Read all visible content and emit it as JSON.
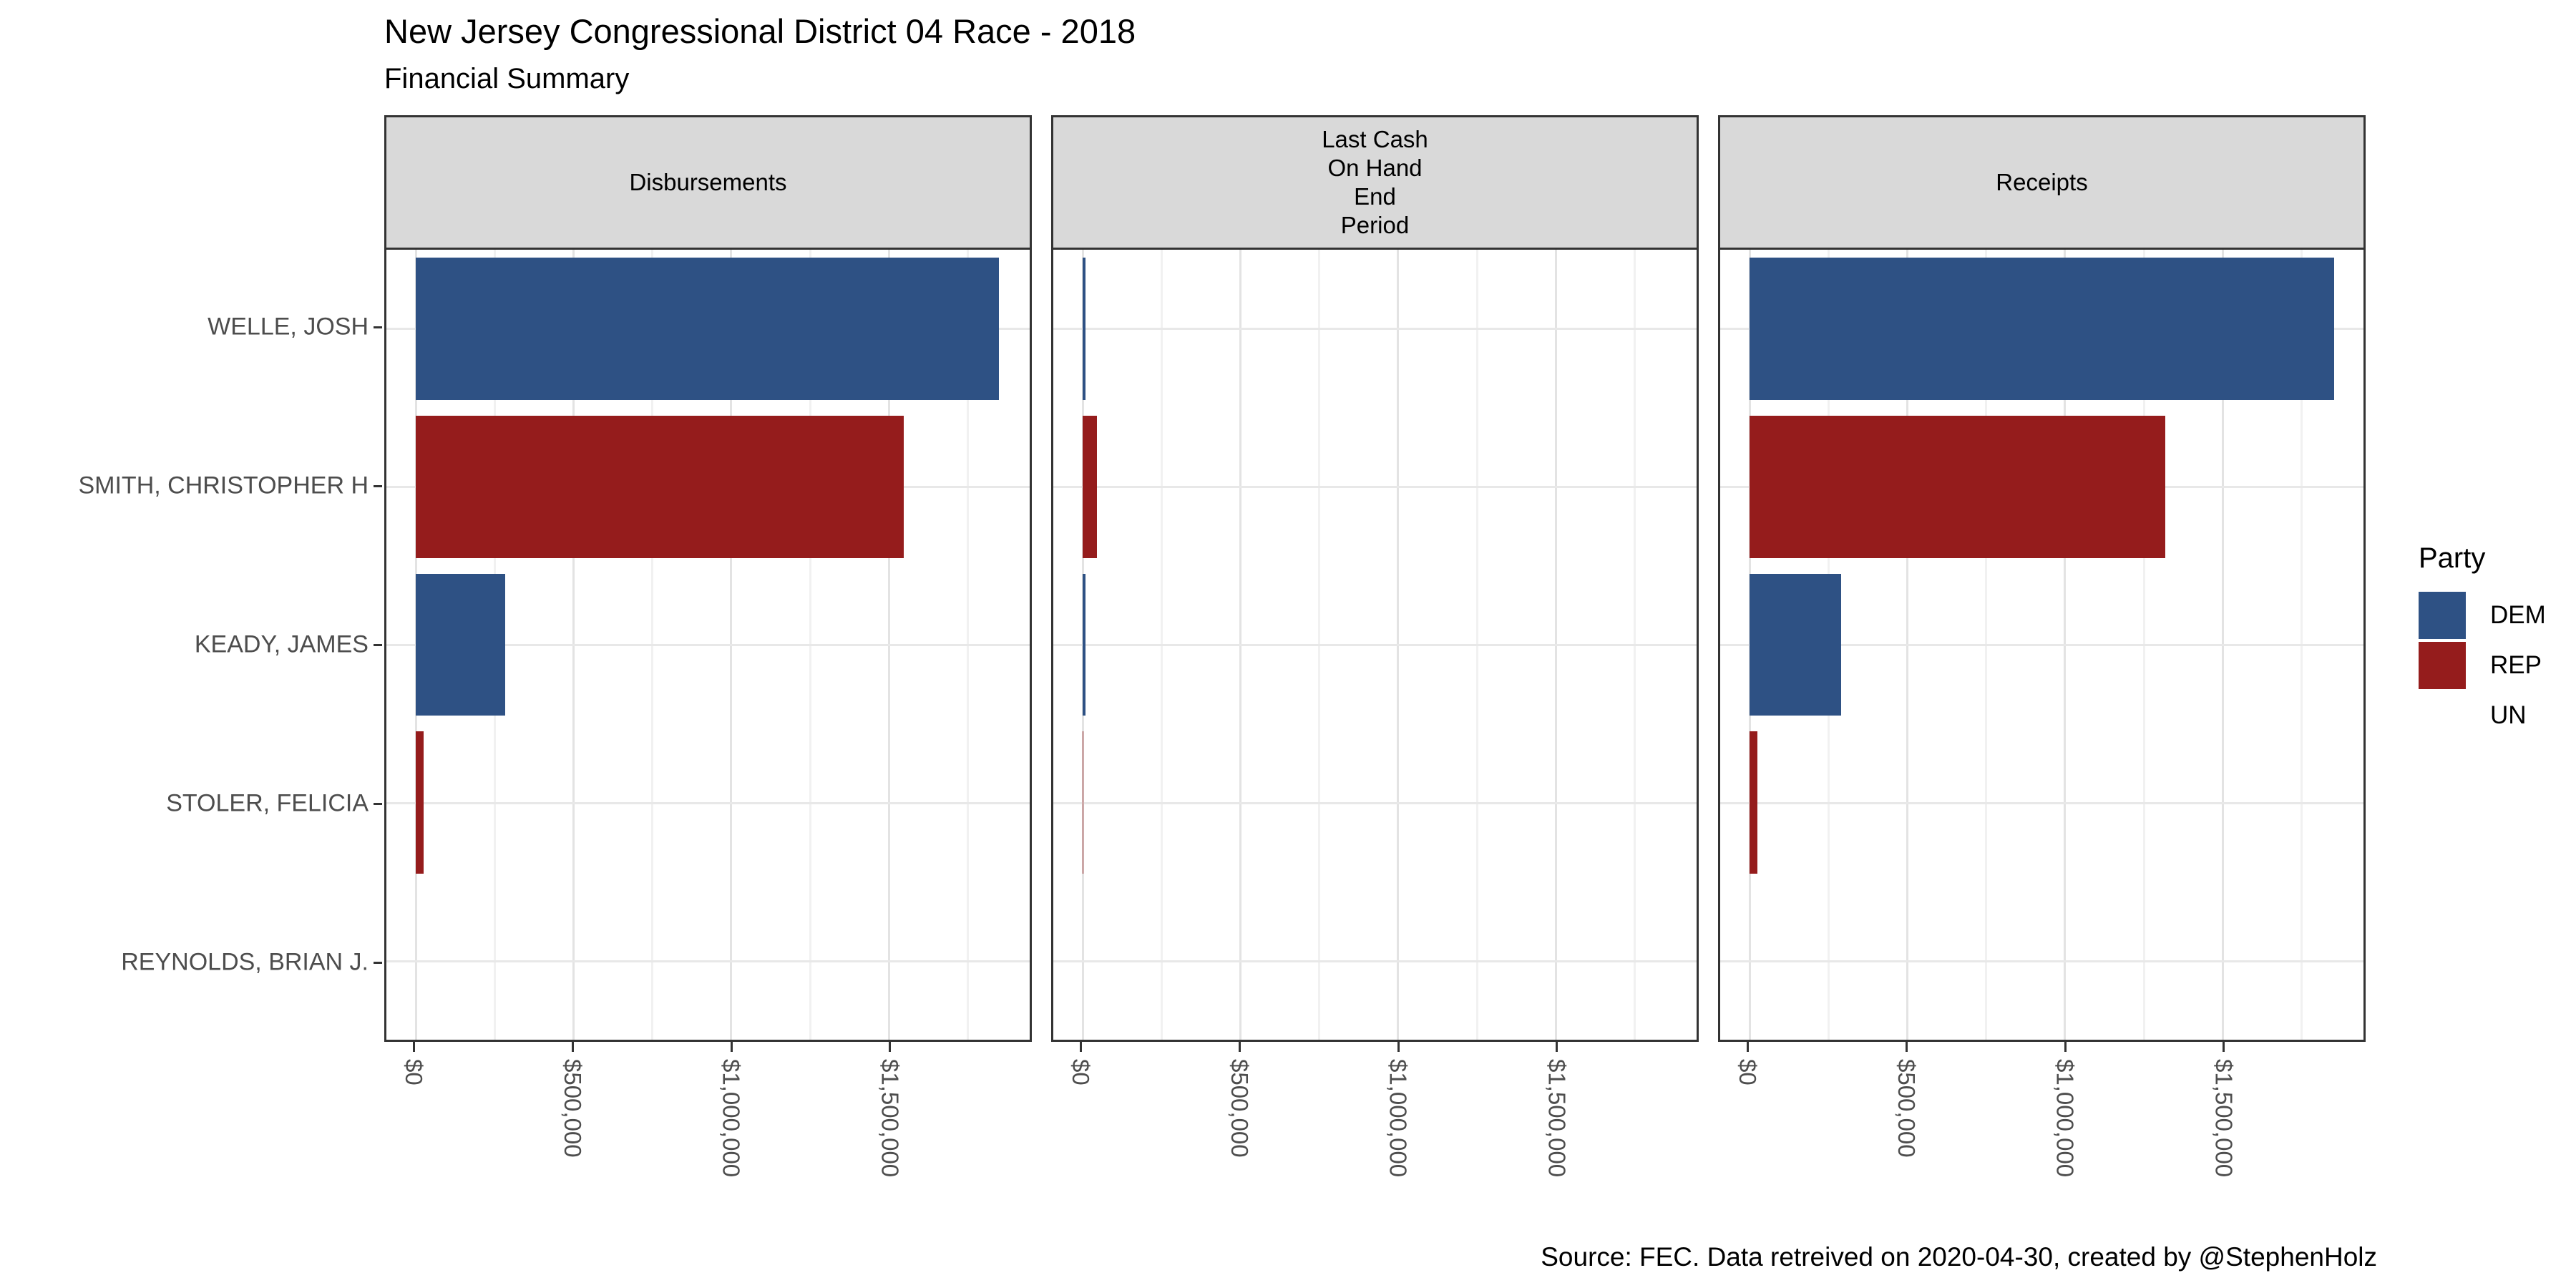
{
  "header": {
    "title": "New Jersey Congressional District 04 Race - 2018",
    "subtitle": "Financial Summary"
  },
  "caption": "Source: FEC. Data retreived on 2020-04-30, created by @StephenHolz",
  "legend": {
    "title": "Party",
    "entries": [
      {
        "label": "DEM",
        "color": "#2e5184"
      },
      {
        "label": "REP",
        "color": "#951c1c"
      },
      {
        "label": "UN",
        "color": "#ffffff"
      }
    ]
  },
  "chart_data": {
    "type": "bar",
    "orientation": "horizontal",
    "title": "New Jersey Congressional District 04 Race - 2018",
    "subtitle": "Financial Summary",
    "categories": [
      "WELLE, JOSH",
      "SMITH, CHRISTOPHER H",
      "KEADY, JAMES",
      "STOLER, FELICIA",
      "REYNOLDS, BRIAN J."
    ],
    "category_parties": [
      "DEM",
      "REP",
      "DEM",
      "REP",
      "UN"
    ],
    "party_colors": {
      "DEM": "#2e5184",
      "REP": "#951c1c",
      "UN": "#ffffff"
    },
    "facets": [
      {
        "label": "Disbursements",
        "values": [
          1850000,
          1548000,
          283000,
          25000,
          0
        ]
      },
      {
        "label": "Last Cash\nOn Hand\nEnd\nPeriod",
        "values": [
          10000,
          45000,
          10000,
          2500,
          0
        ]
      },
      {
        "label": "Receipts",
        "values": [
          1855000,
          1320000,
          290000,
          25000,
          0
        ]
      }
    ],
    "x_ticks": [
      {
        "label": "$0",
        "value": 0
      },
      {
        "label": "$500,000",
        "value": 500000
      },
      {
        "label": "$1,000,000",
        "value": 1000000
      },
      {
        "label": "$1,500,000",
        "value": 1500000
      }
    ],
    "x_max": 1855000,
    "expansion": 0.05,
    "grid_minor_step": 250000,
    "grid": true,
    "legend_position": "right",
    "bar_band_fraction": 0.9
  }
}
